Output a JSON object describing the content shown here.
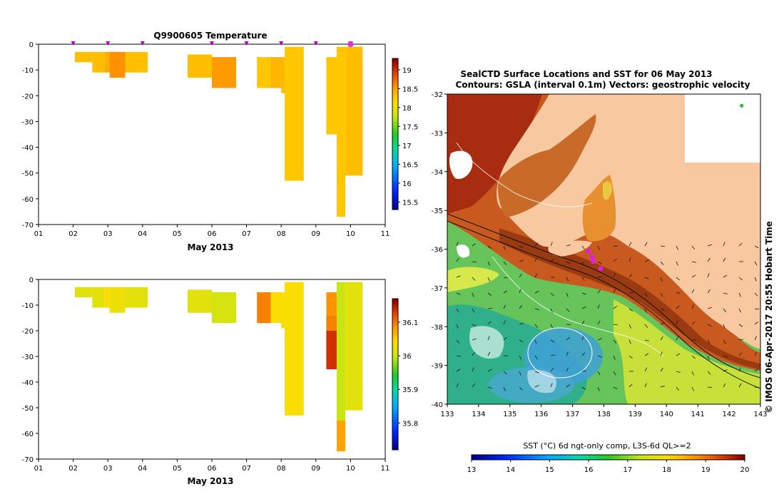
{
  "chart_data": [
    {
      "type": "heatmap",
      "title": "Q9900605  Temperature",
      "xlabel": "May 2013",
      "x_tick_labels": [
        "01",
        "02",
        "03",
        "04",
        "05",
        "06",
        "07",
        "08",
        "09",
        "10",
        "11"
      ],
      "xlim": [
        1,
        11
      ],
      "ylim": [
        -70,
        0
      ],
      "y_tick_labels": [
        "0",
        "-10",
        "-20",
        "-30",
        "-40",
        "-50",
        "-60",
        "-70"
      ],
      "profile_marker_days": [
        2,
        3,
        4,
        6,
        7,
        8,
        9,
        10
      ],
      "highlight_day": 10,
      "colorbar": {
        "min": 15.3,
        "max": 19.3,
        "tick_labels": [
          "15.5",
          "16",
          "16.5",
          "17",
          "17.5",
          "18",
          "18.5",
          "19"
        ]
      },
      "cells": [
        {
          "x0": 2.05,
          "x1": 2.55,
          "y0": -3,
          "y1": -7,
          "v": 18.35
        },
        {
          "x0": 2.55,
          "x1": 2.9,
          "y0": -3,
          "y1": -11,
          "v": 18.35
        },
        {
          "x0": 2.9,
          "x1": 3.05,
          "y0": -3,
          "y1": -11,
          "v": 18.45
        },
        {
          "x0": 3.05,
          "x1": 3.5,
          "y0": -3,
          "y1": -13,
          "v": 18.6
        },
        {
          "x0": 3.5,
          "x1": 4.15,
          "y0": -3,
          "y1": -11,
          "v": 18.35
        },
        {
          "x0": 5.3,
          "x1": 6.0,
          "y0": -4,
          "y1": -13,
          "v": 18.35
        },
        {
          "x0": 6.0,
          "x1": 6.7,
          "y0": -5,
          "y1": -17,
          "v": 18.55
        },
        {
          "x0": 7.3,
          "x1": 7.7,
          "y0": -5,
          "y1": -17,
          "v": 18.3
        },
        {
          "x0": 7.7,
          "x1": 8.1,
          "y0": -5,
          "y1": -17,
          "v": 18.4
        },
        {
          "x0": 8.0,
          "x1": 8.1,
          "y0": -17,
          "y1": -19,
          "v": 18.35
        },
        {
          "x0": 8.1,
          "x1": 8.65,
          "y0": -1,
          "y1": -53,
          "v": 18.3
        },
        {
          "x0": 9.3,
          "x1": 9.6,
          "y0": -5,
          "y1": -35,
          "v": 18.3
        },
        {
          "x0": 9.6,
          "x1": 9.85,
          "y0": -1,
          "y1": -67,
          "v": 18.3
        },
        {
          "x0": 9.85,
          "x1": 10.35,
          "y0": -1,
          "y1": -51,
          "v": 18.35
        }
      ]
    },
    {
      "type": "heatmap",
      "title": "",
      "xlabel": "May 2013",
      "x_tick_labels": [
        "01",
        "02",
        "03",
        "04",
        "05",
        "06",
        "07",
        "08",
        "09",
        "10",
        "11"
      ],
      "xlim": [
        1,
        11
      ],
      "ylim": [
        -70,
        0
      ],
      "y_tick_labels": [
        "0",
        "-10",
        "-20",
        "-30",
        "-40",
        "-50",
        "-60",
        "-70"
      ],
      "colorbar": {
        "min": 35.72,
        "max": 36.17,
        "tick_labels": [
          "35.8",
          "35.9",
          "36",
          "36.1"
        ]
      },
      "cells": [
        {
          "x0": 2.05,
          "x1": 2.55,
          "y0": -3,
          "y1": -7,
          "v": 36.02
        },
        {
          "x0": 2.55,
          "x1": 2.9,
          "y0": -3,
          "y1": -11,
          "v": 36.02
        },
        {
          "x0": 2.9,
          "x1": 3.05,
          "y0": -3,
          "y1": -11,
          "v": 36.04
        },
        {
          "x0": 3.05,
          "x1": 3.5,
          "y0": -3,
          "y1": -13,
          "v": 36.03
        },
        {
          "x0": 3.5,
          "x1": 4.15,
          "y0": -3,
          "y1": -11,
          "v": 36.02
        },
        {
          "x0": 5.3,
          "x1": 6.0,
          "y0": -4,
          "y1": -13,
          "v": 36.02
        },
        {
          "x0": 6.0,
          "x1": 6.7,
          "y0": -5,
          "y1": -17,
          "v": 36.01
        },
        {
          "x0": 7.3,
          "x1": 7.7,
          "y0": -5,
          "y1": -17,
          "v": 36.1
        },
        {
          "x0": 7.7,
          "x1": 8.1,
          "y0": -5,
          "y1": -17,
          "v": 36.04
        },
        {
          "x0": 8.0,
          "x1": 8.1,
          "y0": -17,
          "y1": -19,
          "v": 36.03
        },
        {
          "x0": 8.1,
          "x1": 8.65,
          "y0": -1,
          "y1": -53,
          "v": 36.04
        },
        {
          "x0": 9.3,
          "x1": 9.6,
          "y0": -5,
          "y1": -14,
          "v": 36.09
        },
        {
          "x0": 9.3,
          "x1": 9.6,
          "y0": -14,
          "y1": -20,
          "v": 36.1
        },
        {
          "x0": 9.3,
          "x1": 9.6,
          "y0": -20,
          "y1": -35,
          "v": 36.14
        },
        {
          "x0": 9.6,
          "x1": 9.85,
          "y0": -1,
          "y1": -55,
          "v": 36.0
        },
        {
          "x0": 9.6,
          "x1": 9.85,
          "y0": -55,
          "y1": -67,
          "v": 36.08
        },
        {
          "x0": 9.85,
          "x1": 10.35,
          "y0": -1,
          "y1": -51,
          "v": 36.02
        }
      ]
    },
    {
      "type": "heatmap",
      "title": "SealCTD Surface Locations and SST for 06 May 2013",
      "subtitle": "Contours: GSLA (interval 0.1m) Vectors: geostrophic velocity",
      "x_tick_labels": [
        "133",
        "134",
        "135",
        "136",
        "137",
        "138",
        "139",
        "140",
        "141",
        "142",
        "143"
      ],
      "xlim": [
        133,
        143
      ],
      "ylim": [
        -40,
        -32
      ],
      "y_tick_labels": [
        "-32",
        "-33",
        "-34",
        "-35",
        "-36",
        "-37",
        "-38",
        "-39",
        "-40"
      ],
      "side_label": "© IMOS 06-Apr-2017 20:55 Hobart Time",
      "colorbar_label": "SST (°C) 6d ngt-only comp, L3S-6d QL>=2",
      "colorbar": {
        "min": 13,
        "max": 20,
        "tick_labels": [
          "13",
          "14",
          "15",
          "16",
          "17",
          "18",
          "19",
          "20"
        ]
      },
      "seal_locations": [
        [
          137.5,
          -36.05
        ],
        [
          137.62,
          -36.2
        ],
        [
          137.66,
          -36.32
        ],
        [
          137.9,
          -36.5
        ]
      ],
      "other_location": [
        142.4,
        -32.3
      ]
    }
  ]
}
